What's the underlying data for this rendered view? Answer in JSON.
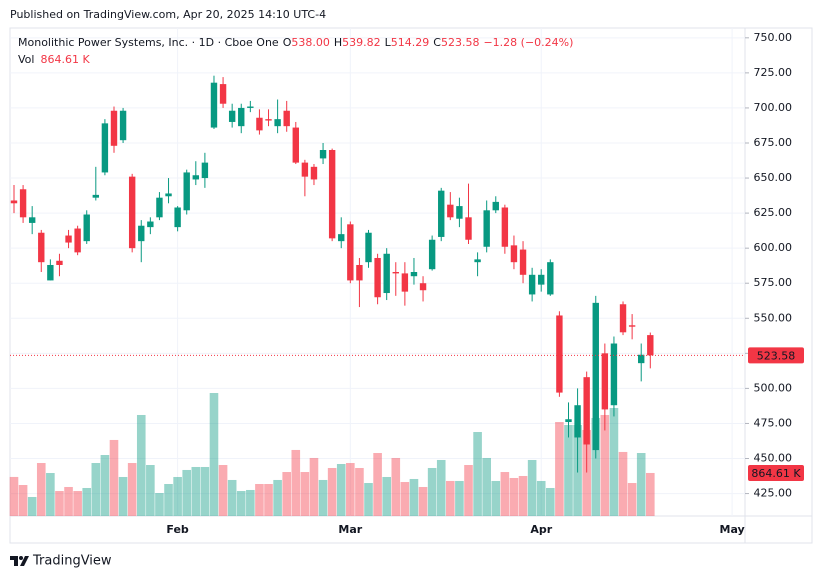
{
  "published": "Published on TradingView.com, Apr 20, 2025 14:10 UTC-4",
  "footer": "TradingView",
  "chart_data": {
    "type": "candlestick",
    "title": "Monolithic Power Systems, Inc. · 1D · Cboe One",
    "legend": {
      "open_label": "O",
      "open": "538.00",
      "high_label": "H",
      "high": "539.82",
      "low_label": "L",
      "low": "514.29",
      "close_label": "C",
      "close": "523.58",
      "change": "−1.28 (−0.24%)"
    },
    "volume_title": "Vol",
    "volume_label": "864.61 K",
    "up_color": "#089981",
    "down_color": "#f23645",
    "grid": true,
    "categories": [
      null,
      null,
      null,
      null,
      null,
      null,
      null,
      null,
      null,
      null,
      null,
      null,
      null,
      null,
      null,
      null,
      null,
      null,
      "Feb",
      null,
      null,
      null,
      null,
      null,
      null,
      null,
      null,
      null,
      null,
      null,
      null,
      null,
      null,
      null,
      null,
      null,
      null,
      "Mar",
      null,
      null,
      null,
      null,
      null,
      null,
      null,
      null,
      null,
      null,
      null,
      null,
      null,
      null,
      null,
      null,
      null,
      null,
      null,
      null,
      "Apr",
      null,
      null,
      null,
      null,
      null,
      null,
      null,
      null,
      null,
      null,
      null,
      null,
      null,
      null,
      null,
      null,
      null,
      null,
      null,
      null,
      "May"
    ],
    "open": [
      634,
      642,
      618,
      611,
      577,
      591,
      609,
      614,
      605,
      636,
      654,
      698,
      677,
      651,
      605,
      615,
      622,
      637,
      615,
      627,
      649,
      650,
      686,
      717,
      690,
      687,
      700,
      693,
      692,
      687,
      698,
      686,
      661,
      658,
      664,
      670,
      605,
      617,
      588,
      590,
      593,
      568,
      583,
      582,
      580,
      575,
      585,
      608,
      631,
      621,
      622,
      590,
      601,
      627,
      629,
      602,
      599,
      567,
      574,
      567,
      552,
      476,
      465,
      508,
      456,
      525,
      488,
      560,
      545,
      518,
      538,
      null,
      null,
      null,
      null,
      null,
      null,
      null,
      null,
      null
    ],
    "high": [
      645,
      645,
      630,
      613,
      592,
      596,
      613,
      616,
      627,
      658,
      692,
      701,
      700,
      653,
      620,
      622,
      640,
      650,
      630,
      656,
      662,
      668,
      723,
      722,
      703,
      703,
      705,
      699,
      699,
      706,
      705,
      690,
      663,
      660,
      675,
      671,
      622,
      619,
      593,
      613,
      596,
      600,
      590,
      590,
      593,
      580,
      609,
      643,
      640,
      636,
      646,
      597,
      634,
      637,
      631,
      609,
      605,
      586,
      585,
      592,
      555,
      490,
      500,
      512,
      566,
      532,
      537,
      562,
      553,
      532,
      539.82,
      null,
      null,
      null,
      null,
      null,
      null,
      null,
      null,
      null
    ],
    "low": [
      625,
      618,
      610,
      583,
      577,
      580,
      600,
      595,
      603,
      634,
      652,
      668,
      675,
      597,
      590,
      610,
      620,
      632,
      612,
      624,
      645,
      643,
      685,
      700,
      686,
      682,
      697,
      681,
      687,
      682,
      683,
      660,
      637,
      645,
      660,
      605,
      600,
      575,
      558,
      586,
      560,
      563,
      566,
      559,
      574,
      562,
      584,
      605,
      620,
      615,
      603,
      580,
      597,
      625,
      596,
      585,
      575,
      562,
      569,
      566,
      494,
      465,
      440,
      440,
      450,
      470,
      480,
      538,
      535,
      505,
      514.29,
      null,
      null,
      null,
      null,
      null,
      null,
      null,
      null,
      null
    ],
    "close": [
      632,
      622,
      622,
      590,
      588,
      588,
      604,
      597,
      624,
      638,
      689,
      673,
      698,
      600,
      616,
      619,
      636,
      639,
      629,
      654,
      652,
      661,
      718,
      703,
      698,
      700,
      701,
      684,
      691,
      692,
      687,
      661,
      651,
      649,
      670,
      607,
      610,
      577,
      577,
      611,
      565,
      596,
      582,
      569,
      583,
      570,
      606,
      641,
      622,
      630,
      606,
      592,
      627,
      633,
      601,
      590,
      581,
      581,
      581,
      590,
      497,
      478,
      488,
      460,
      561,
      485,
      532,
      540,
      544,
      524,
      523.58,
      null,
      null,
      null,
      null,
      null,
      null,
      null,
      null,
      null
    ],
    "volume": [
      785,
      623,
      382,
      1065,
      864,
      502,
      583,
      502,
      563,
      1065,
      1226,
      1528,
      784,
      1065,
      2030,
      1025,
      462,
      643,
      784,
      925,
      985,
      985,
      2472,
      1025,
      724,
      502,
      523,
      643,
      643,
      724,
      884,
      1327,
      884,
      1166,
      724,
      965,
      1045,
      1065,
      965,
      663,
      1266,
      784,
      1166,
      683,
      744,
      583,
      965,
      1126,
      704,
      704,
      1025,
      1688,
      1166,
      704,
      884,
      764,
      804,
      1126,
      704,
      563,
      1889,
      1829,
      1829,
      1728,
      1970,
      2030,
      2171,
      1287,
      663,
      1266,
      864.61,
      null,
      null,
      null,
      null,
      null,
      null,
      null,
      null,
      null
    ],
    "ylim": [
      409,
      757
    ],
    "yticks": [
      {
        "value": 425,
        "label": "425.00"
      },
      {
        "value": 450,
        "label": "450.00"
      },
      {
        "value": 475,
        "label": "475.00"
      },
      {
        "value": 500,
        "label": "500.00"
      },
      {
        "value": 525,
        "label": "525.00"
      },
      {
        "value": 550,
        "label": "550.00"
      },
      {
        "value": 575,
        "label": "575.00"
      },
      {
        "value": 600,
        "label": "600.00"
      },
      {
        "value": 625,
        "label": "625.00"
      },
      {
        "value": 650,
        "label": "650.00"
      },
      {
        "value": 675,
        "label": "675.00"
      },
      {
        "value": 700,
        "label": "700.00"
      },
      {
        "value": 725,
        "label": "725.00"
      },
      {
        "value": 750,
        "label": "750.00"
      }
    ]
  }
}
